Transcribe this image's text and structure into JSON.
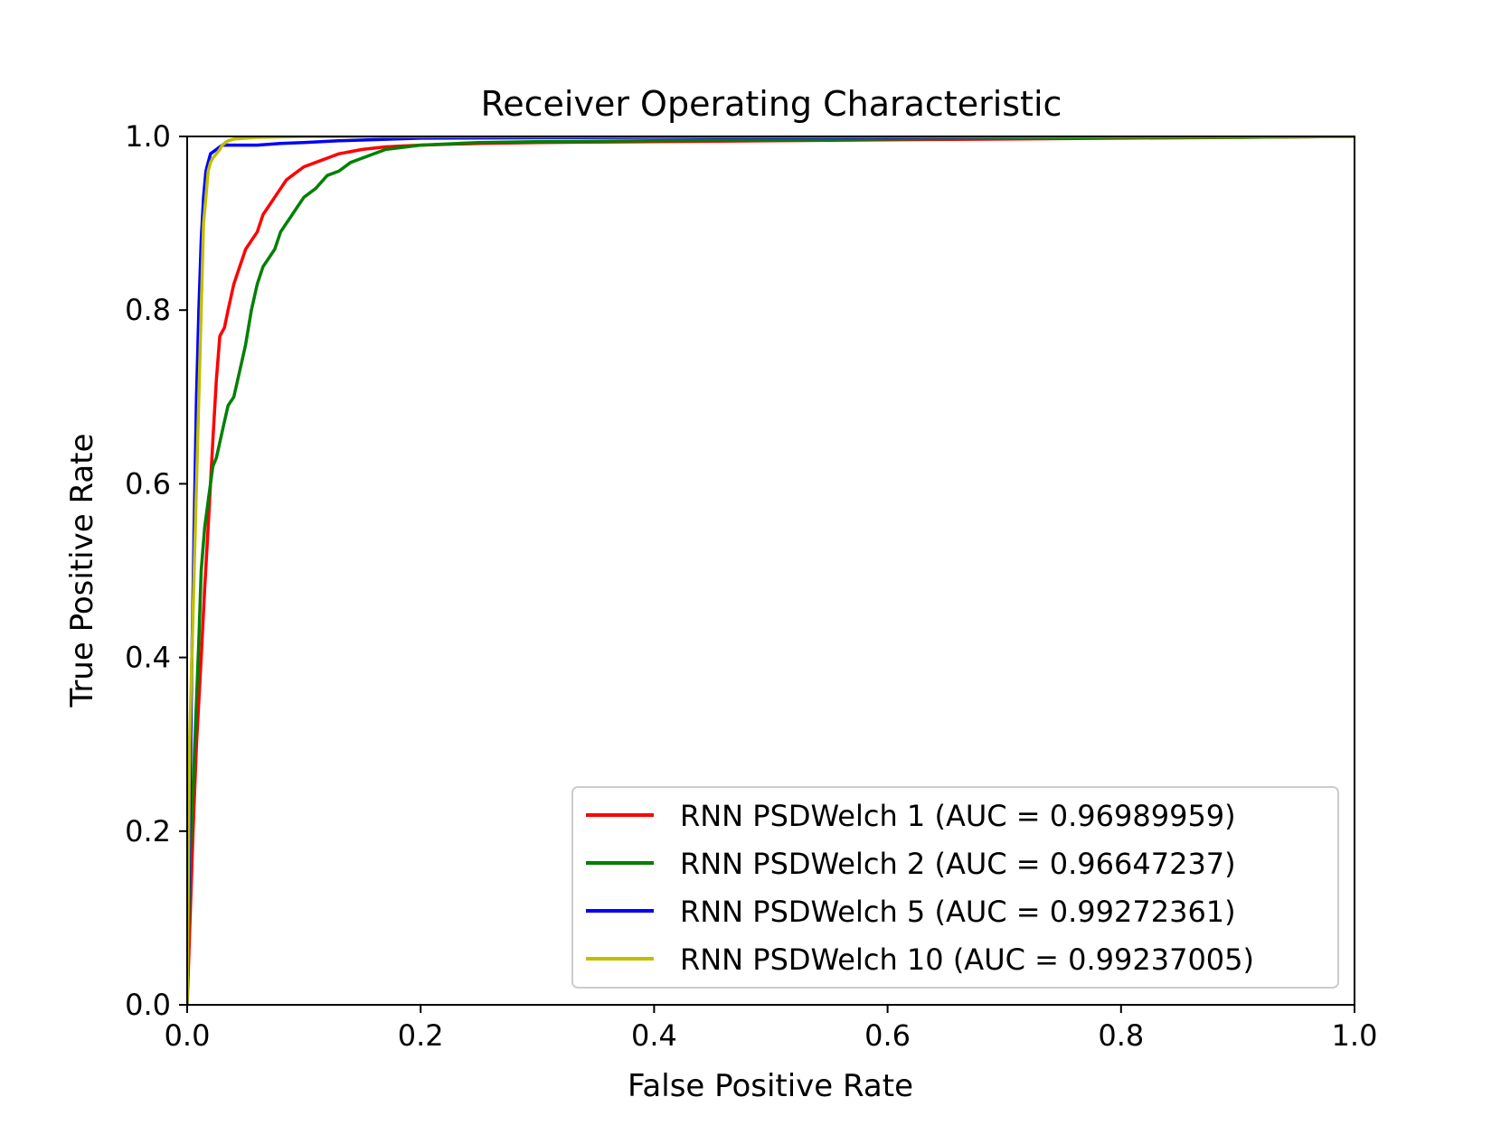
{
  "chart_data": {
    "type": "line",
    "title": "Receiver Operating Characteristic",
    "xlabel": "False Positive Rate",
    "ylabel": "True Positive Rate",
    "xlim": [
      0,
      1
    ],
    "ylim": [
      0,
      1
    ],
    "xticks": [
      0.0,
      0.2,
      0.4,
      0.6,
      0.8,
      1.0
    ],
    "yticks": [
      0.0,
      0.2,
      0.4,
      0.6,
      0.8,
      1.0
    ],
    "xtick_labels": [
      "0.0",
      "0.2",
      "0.4",
      "0.6",
      "0.8",
      "1.0"
    ],
    "ytick_labels": [
      "0.0",
      "0.2",
      "0.4",
      "0.6",
      "0.8",
      "1.0"
    ],
    "grid": false,
    "legend_position": "lower-right",
    "series": [
      {
        "name": "RNN PSDWelch 1 (AUC = 0.96989959)",
        "color": "#ff0000",
        "x": [
          0,
          0.002,
          0.005,
          0.008,
          0.012,
          0.015,
          0.018,
          0.02,
          0.022,
          0.025,
          0.028,
          0.032,
          0.035,
          0.04,
          0.045,
          0.05,
          0.055,
          0.06,
          0.065,
          0.07,
          0.075,
          0.08,
          0.085,
          0.09,
          0.095,
          0.1,
          0.11,
          0.12,
          0.13,
          0.15,
          0.17,
          0.2,
          0.25,
          0.3,
          0.4,
          0.5,
          0.6,
          0.7,
          0.8,
          0.9,
          1.0
        ],
        "y": [
          0,
          0.08,
          0.2,
          0.3,
          0.4,
          0.48,
          0.55,
          0.6,
          0.65,
          0.72,
          0.77,
          0.78,
          0.8,
          0.83,
          0.85,
          0.87,
          0.88,
          0.89,
          0.91,
          0.92,
          0.93,
          0.94,
          0.95,
          0.955,
          0.96,
          0.965,
          0.97,
          0.975,
          0.98,
          0.985,
          0.988,
          0.99,
          0.992,
          0.993,
          0.994,
          0.995,
          0.996,
          0.997,
          0.998,
          0.999,
          1.0
        ]
      },
      {
        "name": "RNN PSDWelch 2 (AUC = 0.96647237)",
        "color": "#008000",
        "x": [
          0,
          0.002,
          0.005,
          0.008,
          0.01,
          0.012,
          0.015,
          0.018,
          0.02,
          0.022,
          0.025,
          0.03,
          0.035,
          0.04,
          0.045,
          0.05,
          0.055,
          0.06,
          0.065,
          0.07,
          0.075,
          0.08,
          0.085,
          0.09,
          0.095,
          0.1,
          0.11,
          0.12,
          0.13,
          0.14,
          0.15,
          0.17,
          0.2,
          0.25,
          0.3,
          0.4,
          0.5,
          0.6,
          0.7,
          0.8,
          0.9,
          1.0
        ],
        "y": [
          0,
          0.15,
          0.25,
          0.35,
          0.42,
          0.5,
          0.55,
          0.58,
          0.6,
          0.62,
          0.63,
          0.66,
          0.69,
          0.7,
          0.73,
          0.76,
          0.8,
          0.83,
          0.85,
          0.86,
          0.87,
          0.89,
          0.9,
          0.91,
          0.92,
          0.93,
          0.94,
          0.955,
          0.96,
          0.97,
          0.975,
          0.985,
          0.99,
          0.993,
          0.994,
          0.995,
          0.996,
          0.997,
          0.998,
          0.999,
          0.999,
          1.0
        ]
      },
      {
        "name": "RNN PSDWelch 5 (AUC = 0.99272361)",
        "color": "#0000ff",
        "x": [
          0,
          0.002,
          0.004,
          0.006,
          0.008,
          0.01,
          0.012,
          0.014,
          0.016,
          0.018,
          0.02,
          0.025,
          0.03,
          0.04,
          0.06,
          0.08,
          0.1,
          0.13,
          0.2,
          0.4,
          0.6,
          0.8,
          1.0
        ],
        "y": [
          0,
          0.2,
          0.4,
          0.55,
          0.7,
          0.8,
          0.88,
          0.93,
          0.96,
          0.97,
          0.98,
          0.985,
          0.99,
          0.99,
          0.99,
          0.992,
          0.993,
          0.995,
          0.998,
          0.999,
          0.999,
          1.0,
          1.0
        ]
      },
      {
        "name": "RNN PSDWelch 10 (AUC = 0.99237005)",
        "color": "#bfbf00",
        "x": [
          0,
          0.002,
          0.004,
          0.006,
          0.008,
          0.01,
          0.012,
          0.014,
          0.016,
          0.018,
          0.02,
          0.022,
          0.025,
          0.028,
          0.03,
          0.035,
          0.04,
          0.05,
          0.06,
          0.1,
          0.2,
          0.4,
          0.6,
          0.8,
          1.0
        ],
        "y": [
          0,
          0.3,
          0.4,
          0.5,
          0.6,
          0.7,
          0.8,
          0.9,
          0.93,
          0.96,
          0.97,
          0.975,
          0.98,
          0.985,
          0.99,
          0.995,
          0.997,
          0.998,
          0.999,
          1.0,
          1.0,
          1.0,
          1.0,
          1.0,
          1.0
        ]
      }
    ]
  }
}
